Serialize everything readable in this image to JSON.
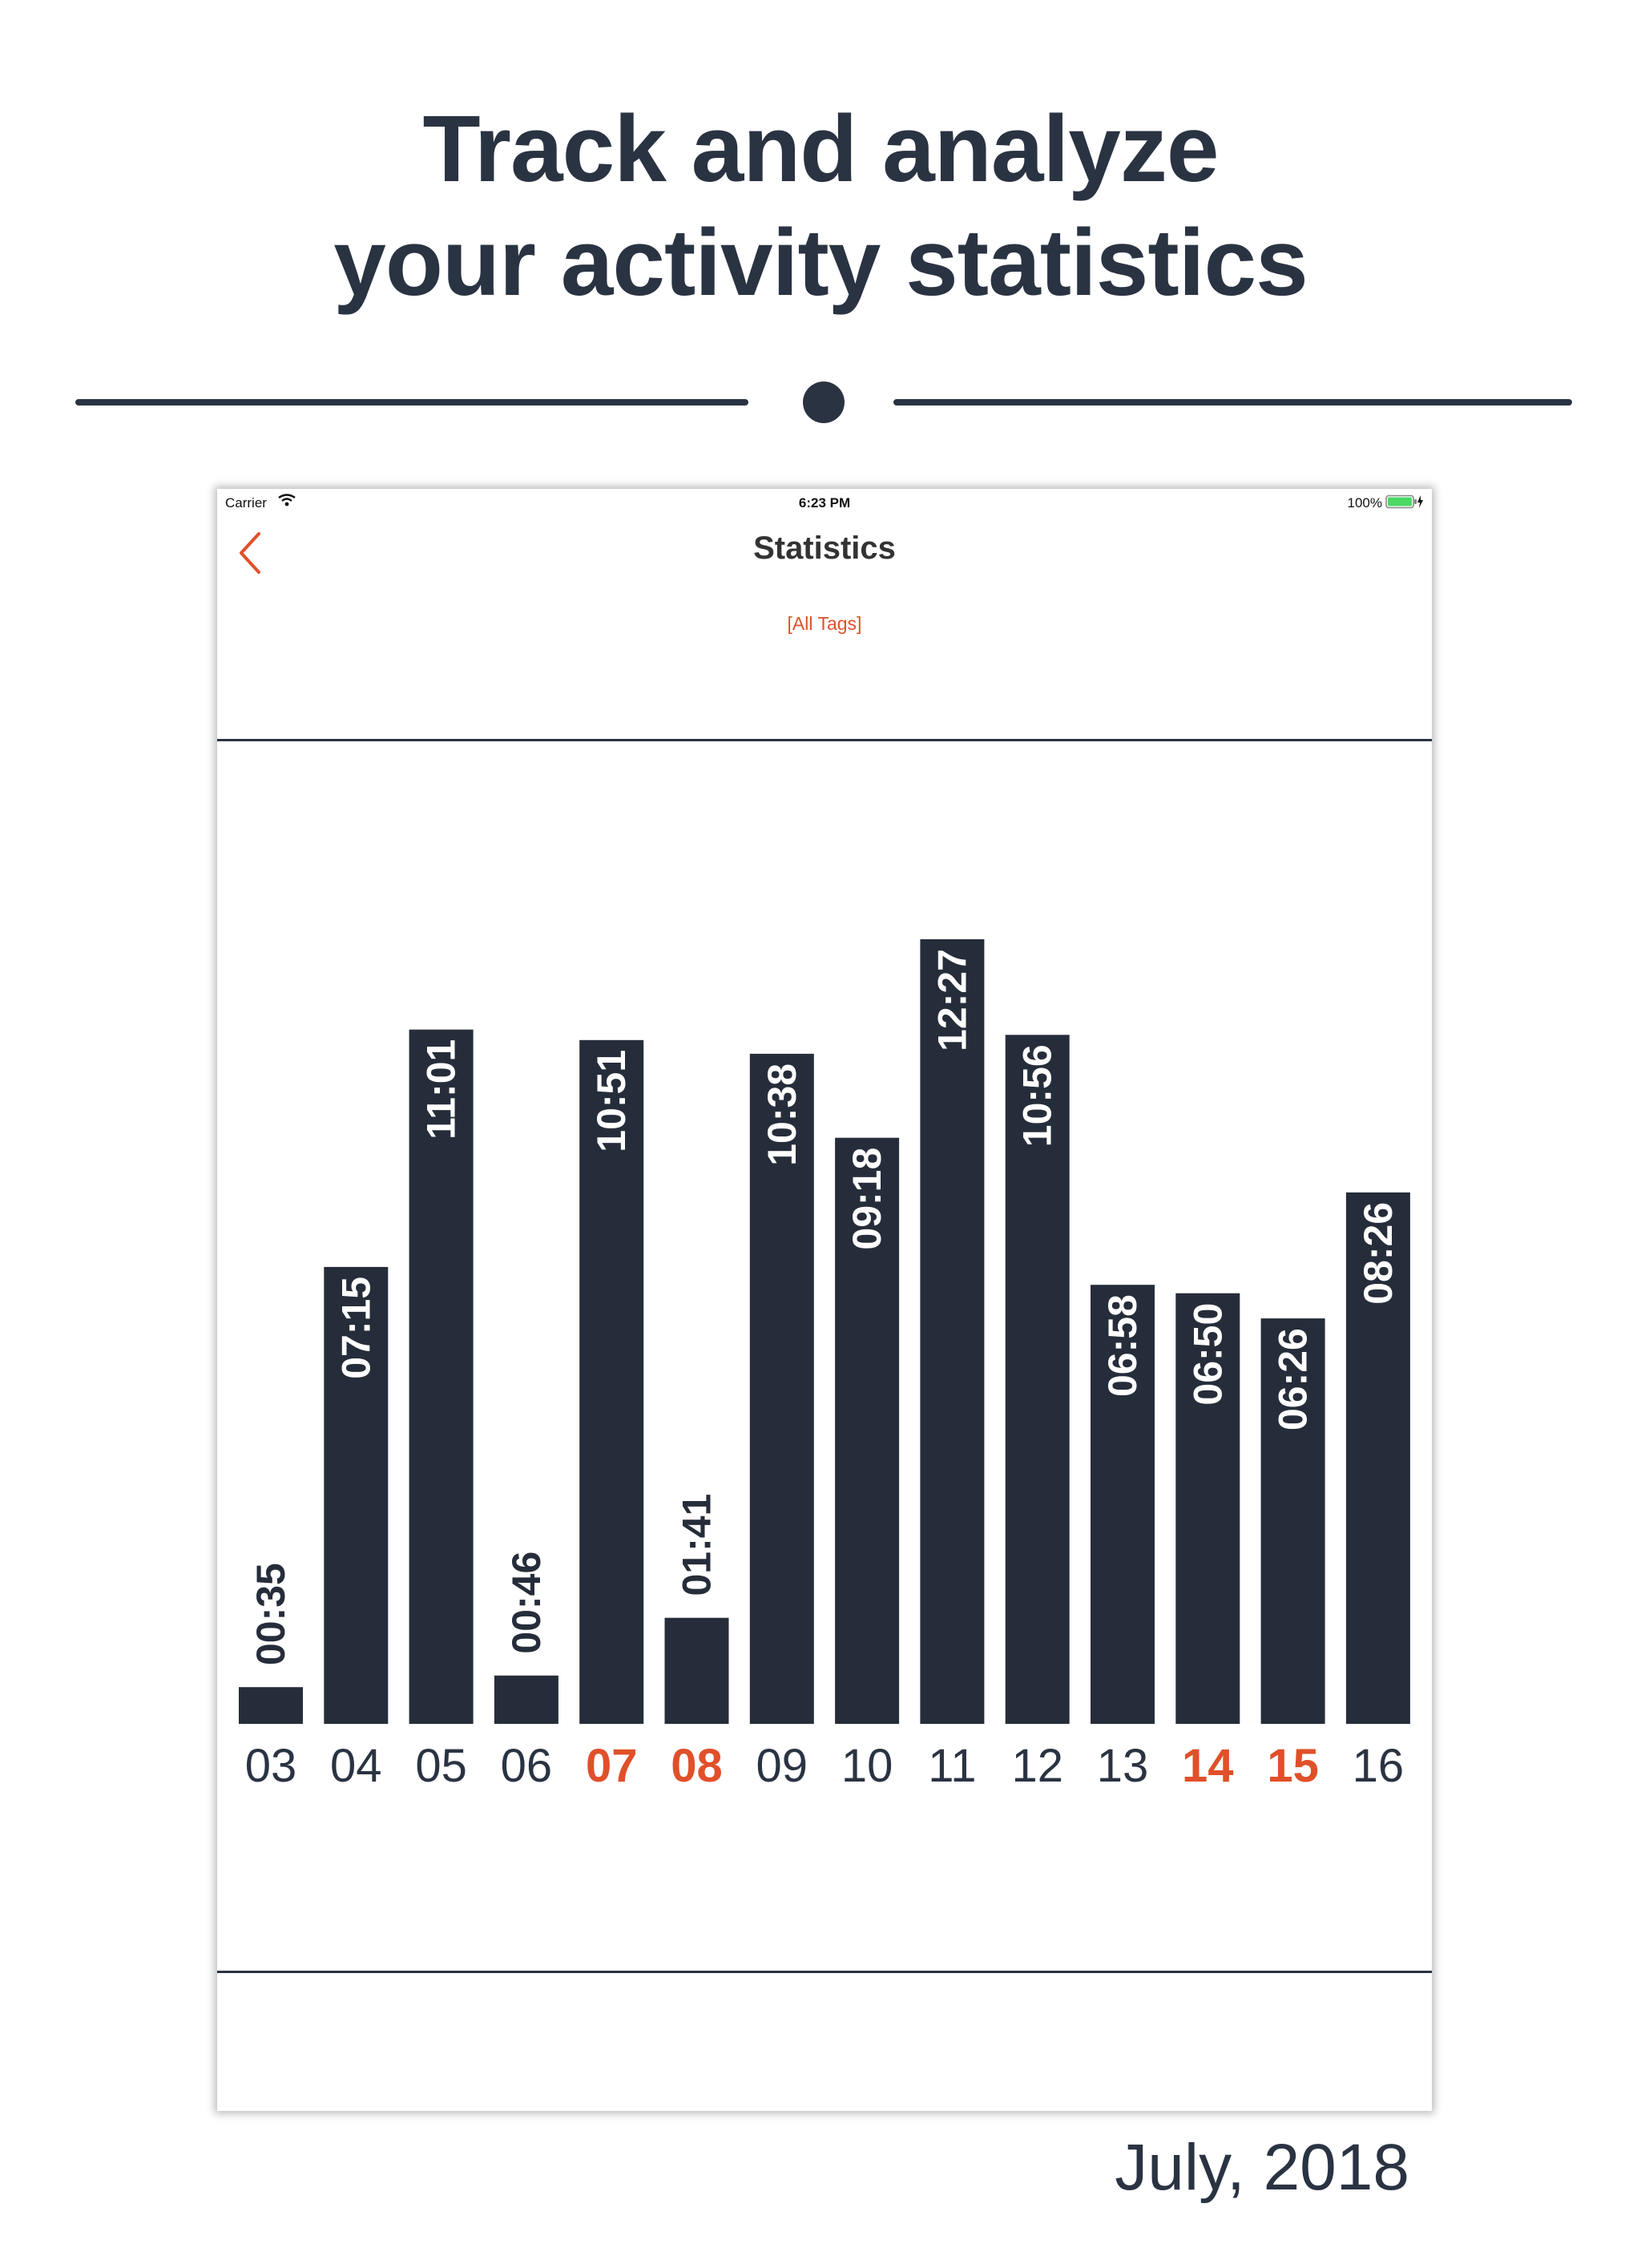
{
  "headline": {
    "line1": "Track and analyze",
    "line2": "your activity statistics"
  },
  "status_bar": {
    "carrier": "Carrier",
    "time": "6:23 PM",
    "battery": "100%"
  },
  "nav": {
    "back_icon": "chevron-left-icon",
    "title": "Statistics",
    "tags_filter": "[All Tags]"
  },
  "colors": {
    "dark": "#262d3a",
    "accent": "#e0502a",
    "label_dark": "#2a3342",
    "bar_text": "#ffffff"
  },
  "chart_data": {
    "type": "bar",
    "categories": [
      "03",
      "04",
      "05",
      "06",
      "07",
      "08",
      "09",
      "10",
      "11",
      "12",
      "13",
      "14",
      "15",
      "16"
    ],
    "values": [
      0.583,
      7.25,
      11.017,
      0.767,
      10.85,
      1.683,
      10.633,
      9.3,
      12.45,
      10.933,
      6.967,
      6.833,
      6.433,
      8.433
    ],
    "value_labels": [
      "00:35",
      "07:15",
      "11:01",
      "00:46",
      "10:51",
      "01:41",
      "10:38",
      "09:18",
      "12:27",
      "10:56",
      "06:58",
      "06:50",
      "06:26",
      "08:26"
    ],
    "highlighted_categories": [
      "07",
      "08",
      "14",
      "15"
    ],
    "ylim": [
      0,
      12.45
    ],
    "period_label": "July, 2018"
  }
}
